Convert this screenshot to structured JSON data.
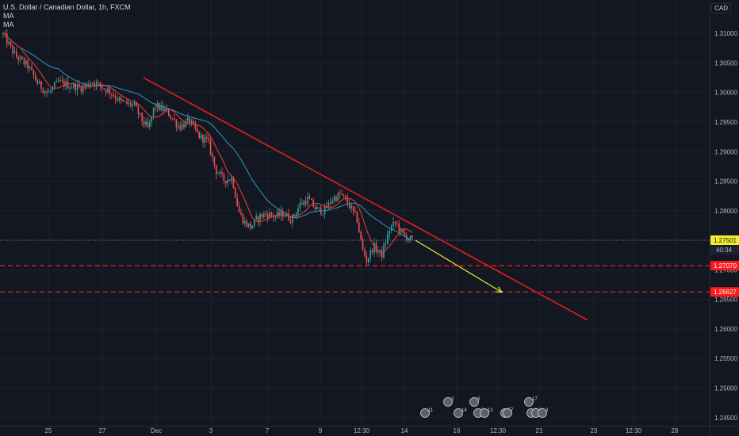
{
  "legend": {
    "title": "U.S. Dollar / Canadian Dollar, 1h, FXCM",
    "indicators": [
      "MA",
      "MA"
    ]
  },
  "currency": "CAD",
  "colors": {
    "background": "#131722",
    "grid": "#1e222d",
    "up": "#26a69a",
    "down": "#ef5350",
    "ma_fast": "#e53935",
    "ma_slow": "#2b8fb3",
    "trendline": "#e01e1e",
    "support": "#ff1a1a",
    "projection": "#f5ee2d",
    "axis_text": "#b2b5be"
  },
  "chart_data": {
    "type": "candlestick",
    "symbol": "USDCAD",
    "interval": "1h",
    "source": "FXCM",
    "y_ticks": [
      "1.31000",
      "1.30500",
      "1.30000",
      "1.29500",
      "1.29000",
      "1.28500",
      "1.28000",
      "1.27500",
      "1.27000",
      "1.26500",
      "1.26000",
      "1.25500",
      "1.25000",
      "1.24500"
    ],
    "x_ticks": [
      "25",
      "27",
      "Dec",
      "3",
      "7",
      "9",
      "12:30",
      "14",
      "16",
      "12:30",
      "21",
      "23",
      "12:30",
      "28"
    ],
    "ylim": [
      1.2443,
      1.3127
    ],
    "price_path": [
      {
        "t": 0.0,
        "p": 1.3098
      },
      {
        "t": 0.03,
        "p": 1.3062
      },
      {
        "t": 0.06,
        "p": 1.3045
      },
      {
        "t": 0.085,
        "p": 1.3015
      },
      {
        "t": 0.11,
        "p": 1.2998
      },
      {
        "t": 0.135,
        "p": 1.3018
      },
      {
        "t": 0.16,
        "p": 1.3012
      },
      {
        "t": 0.19,
        "p": 1.3008
      },
      {
        "t": 0.22,
        "p": 1.3018
      },
      {
        "t": 0.26,
        "p": 1.3002
      },
      {
        "t": 0.29,
        "p": 1.2983
      },
      {
        "t": 0.32,
        "p": 1.2978
      },
      {
        "t": 0.34,
        "p": 1.2952
      },
      {
        "t": 0.355,
        "p": 1.2938
      },
      {
        "t": 0.37,
        "p": 1.2978
      },
      {
        "t": 0.4,
        "p": 1.2968
      },
      {
        "t": 0.43,
        "p": 1.2942
      },
      {
        "t": 0.455,
        "p": 1.2952
      },
      {
        "t": 0.48,
        "p": 1.2925
      },
      {
        "t": 0.5,
        "p": 1.2918
      },
      {
        "t": 0.52,
        "p": 1.2868
      },
      {
        "t": 0.54,
        "p": 1.2852
      },
      {
        "t": 0.56,
        "p": 1.2855
      },
      {
        "t": 0.575,
        "p": 1.28
      },
      {
        "t": 0.59,
        "p": 1.278
      },
      {
        "t": 0.605,
        "p": 1.2772
      },
      {
        "t": 0.625,
        "p": 1.279
      },
      {
        "t": 0.645,
        "p": 1.2795
      },
      {
        "t": 0.665,
        "p": 1.279
      },
      {
        "t": 0.685,
        "p": 1.2795
      },
      {
        "t": 0.705,
        "p": 1.2785
      },
      {
        "t": 0.725,
        "p": 1.281
      },
      {
        "t": 0.745,
        "p": 1.282
      },
      {
        "t": 0.765,
        "p": 1.2802
      },
      {
        "t": 0.785,
        "p": 1.28
      },
      {
        "t": 0.805,
        "p": 1.282
      },
      {
        "t": 0.825,
        "p": 1.2828
      },
      {
        "t": 0.845,
        "p": 1.281
      },
      {
        "t": 0.865,
        "p": 1.2785
      },
      {
        "t": 0.878,
        "p": 1.2735
      },
      {
        "t": 0.888,
        "p": 1.2715
      },
      {
        "t": 0.905,
        "p": 1.274
      },
      {
        "t": 0.925,
        "p": 1.2725
      },
      {
        "t": 0.945,
        "p": 1.277
      },
      {
        "t": 0.96,
        "p": 1.278
      },
      {
        "t": 0.975,
        "p": 1.276
      },
      {
        "t": 1.0,
        "p": 1.275
      }
    ],
    "current_price": {
      "value": 1.27501,
      "label": "1.27501",
      "countdown": "40:34"
    },
    "support_levels": [
      {
        "value": 1.2707,
        "label": "1.27070"
      },
      {
        "value": 1.26627,
        "label": "1.26627"
      }
    ],
    "trendline": {
      "start": {
        "x": "Nov 30",
        "y": 1.3025
      },
      "end": {
        "x": "Dec 22",
        "y": 1.2615
      }
    },
    "projection_arrow": {
      "start": {
        "y": 1.275
      },
      "end": {
        "y": 1.2662
      }
    },
    "event_markers": [
      "11",
      "2",
      "14",
      "8",
      "2",
      "12",
      "5",
      "7",
      "17",
      "3",
      "3",
      "3"
    ]
  }
}
